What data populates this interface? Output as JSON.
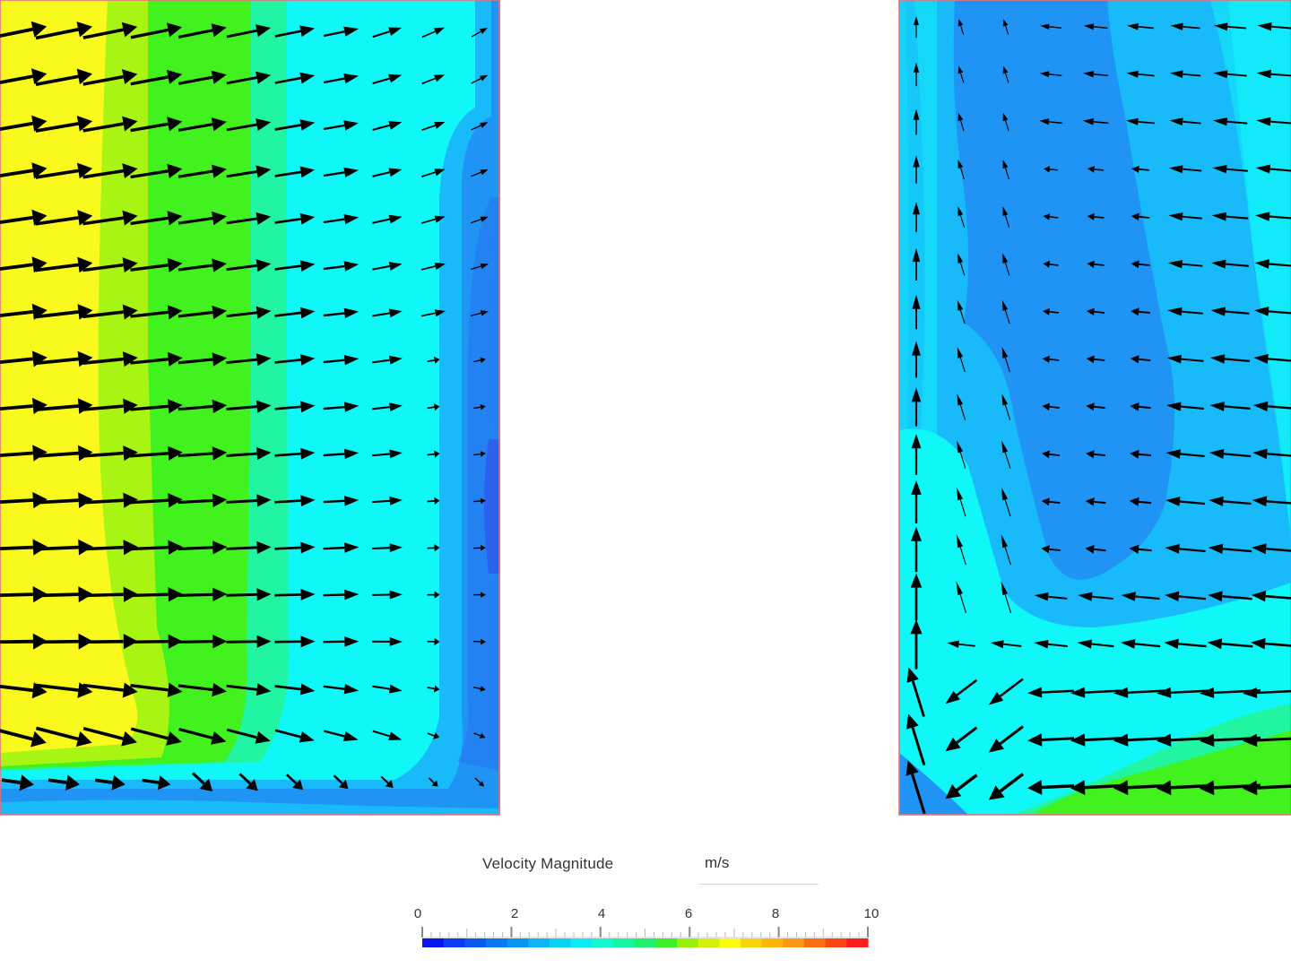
{
  "legend": {
    "title": "Velocity Magnitude",
    "unit": "m/s",
    "min": 0,
    "max": 10,
    "tick_labels": [
      "0",
      "2",
      "4",
      "6",
      "8",
      "10"
    ],
    "colors": [
      "#0a14f0",
      "#0a3cf0",
      "#0a5af0",
      "#0a78f0",
      "#0a96f0",
      "#0ab4f5",
      "#0ad2f5",
      "#0aebf5",
      "#14f5d2",
      "#14f5a0",
      "#1ef06e",
      "#3cf028",
      "#96f00a",
      "#d2f00a",
      "#fafa0a",
      "#fad20a",
      "#fab40a",
      "#fa9614",
      "#fa6e14",
      "#fa4614",
      "#fa1e1e"
    ]
  },
  "field_colors": {
    "yellow": "#f9f91e",
    "yellow_green": "#a8f514",
    "green": "#41f21e",
    "spring_green": "#21f5a2",
    "aqua": "#1eedd9",
    "cyan": "#10f7f8",
    "light_blue": "#14d7f9",
    "sky_blue": "#18baf9",
    "blue": "#1f94f5",
    "deep_blue": "#2a62ec",
    "boundary": "#e8707a"
  }
}
